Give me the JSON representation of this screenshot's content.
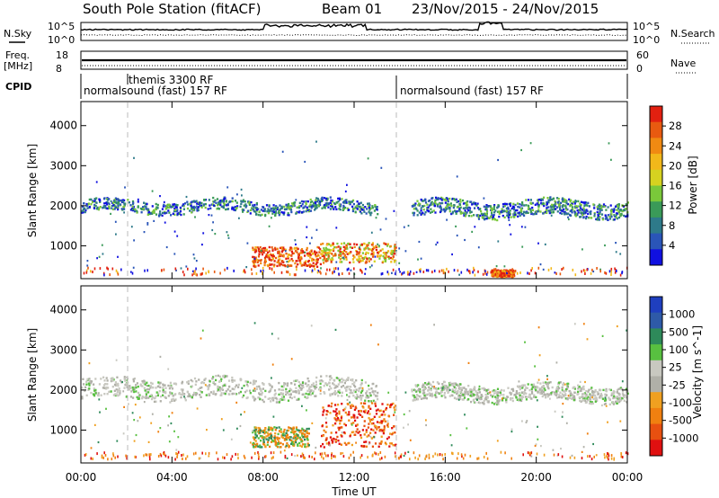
{
  "title": "South Pole Station (fitACF)",
  "beam": "Beam 01",
  "date_range": "23/Nov/2015 - 24/Nov/2015",
  "strip_labels": {
    "nsky": "N.Sky",
    "freq": "Freq.",
    "freq_unit": "[MHz]",
    "cpid": "CPID",
    "nsearch": "N.Search",
    "nave": "Nave"
  },
  "strip_ticks": {
    "nsky_top": "10^5",
    "nsky_bottom": "10^0",
    "nsearch_top": "10^5",
    "nsearch_bottom": "10^0",
    "freq_top": "18",
    "freq_bottom": "8",
    "nave_top": "60",
    "nave_bottom": "0"
  },
  "cpid_segments": [
    {
      "label": "themis 3300 RF",
      "start_hour": 2.0
    },
    {
      "label": "normalsound (fast) 157 RF",
      "start_hour": 0.0
    },
    {
      "label": "normalsound (fast) 157 RF",
      "start_hour": 14.0
    }
  ],
  "chart_data": [
    {
      "type": "heatmap",
      "name": "power-panel",
      "xlabel": "Time UT",
      "ylabel": "Slant Range [km]",
      "x_ticks": [
        "00:00",
        "04:00",
        "08:00",
        "12:00",
        "16:00",
        "20:00",
        "00:00"
      ],
      "xlim_hours": [
        0,
        24
      ],
      "y_ticks": [
        1000,
        2000,
        3000,
        4000
      ],
      "ylim": [
        180,
        4600
      ],
      "colorbar": {
        "label": "Power [dB]",
        "ticks": [
          4,
          8,
          12,
          16,
          20,
          24,
          28
        ],
        "range": [
          0,
          30
        ],
        "colors": [
          "#1010e0",
          "#2a55b8",
          "#2e7a8a",
          "#3a9a58",
          "#7ac83a",
          "#d6d220",
          "#f2b81a",
          "#f08a12",
          "#e85a10",
          "#e22010"
        ]
      },
      "features": [
        {
          "kind": "band",
          "hour_start": 0.0,
          "hour_end": 13.0,
          "range_low": 1850,
          "range_high": 2150,
          "level": "low"
        },
        {
          "kind": "band",
          "hour_start": 14.5,
          "hour_end": 24.0,
          "range_low": 1750,
          "range_high": 2150,
          "level": "low"
        },
        {
          "kind": "patch",
          "hour_start": 7.5,
          "hour_end": 10.5,
          "range_low": 500,
          "range_high": 1000,
          "level": "high"
        },
        {
          "kind": "patch",
          "hour_start": 10.5,
          "hour_end": 13.8,
          "range_low": 600,
          "range_high": 1100,
          "level": "mid-high"
        },
        {
          "kind": "patch",
          "hour_start": 18.0,
          "hour_end": 19.0,
          "range_low": 250,
          "range_high": 420,
          "level": "high"
        }
      ]
    },
    {
      "type": "heatmap",
      "name": "velocity-panel",
      "xlabel": "Time UT",
      "ylabel": "Slant Range [km]",
      "x_ticks": [
        "00:00",
        "04:00",
        "08:00",
        "12:00",
        "16:00",
        "20:00",
        "00:00"
      ],
      "xlim_hours": [
        0,
        24
      ],
      "y_ticks": [
        1000,
        2000,
        3000,
        4000
      ],
      "ylim": [
        180,
        4600
      ],
      "colorbar": {
        "label": "Velocity [m s^-1]",
        "tick_labels": [
          "1000",
          "500",
          "100",
          "25",
          "-25",
          "-100",
          "-500",
          "-1000"
        ],
        "colors": [
          "#1f3fbf",
          "#2e5aa8",
          "#2e8a5a",
          "#58c040",
          "#c8c8c0",
          "#b0b0a8",
          "#f0a020",
          "#f08010",
          "#e85010",
          "#e01010"
        ]
      },
      "features": [
        {
          "kind": "band",
          "hour_start": 0.0,
          "hour_end": 13.0,
          "range_low": 1800,
          "range_high": 2300,
          "level": "ground"
        },
        {
          "kind": "band",
          "hour_start": 14.5,
          "hour_end": 24.0,
          "range_low": 1750,
          "range_high": 2150,
          "level": "ground"
        },
        {
          "kind": "patch",
          "hour_start": 7.5,
          "hour_end": 10.0,
          "range_low": 600,
          "range_high": 1100,
          "level": "negative"
        },
        {
          "kind": "patch",
          "hour_start": 10.5,
          "hour_end": 13.8,
          "range_low": 600,
          "range_high": 1700,
          "level": "strong-negative"
        }
      ]
    }
  ]
}
